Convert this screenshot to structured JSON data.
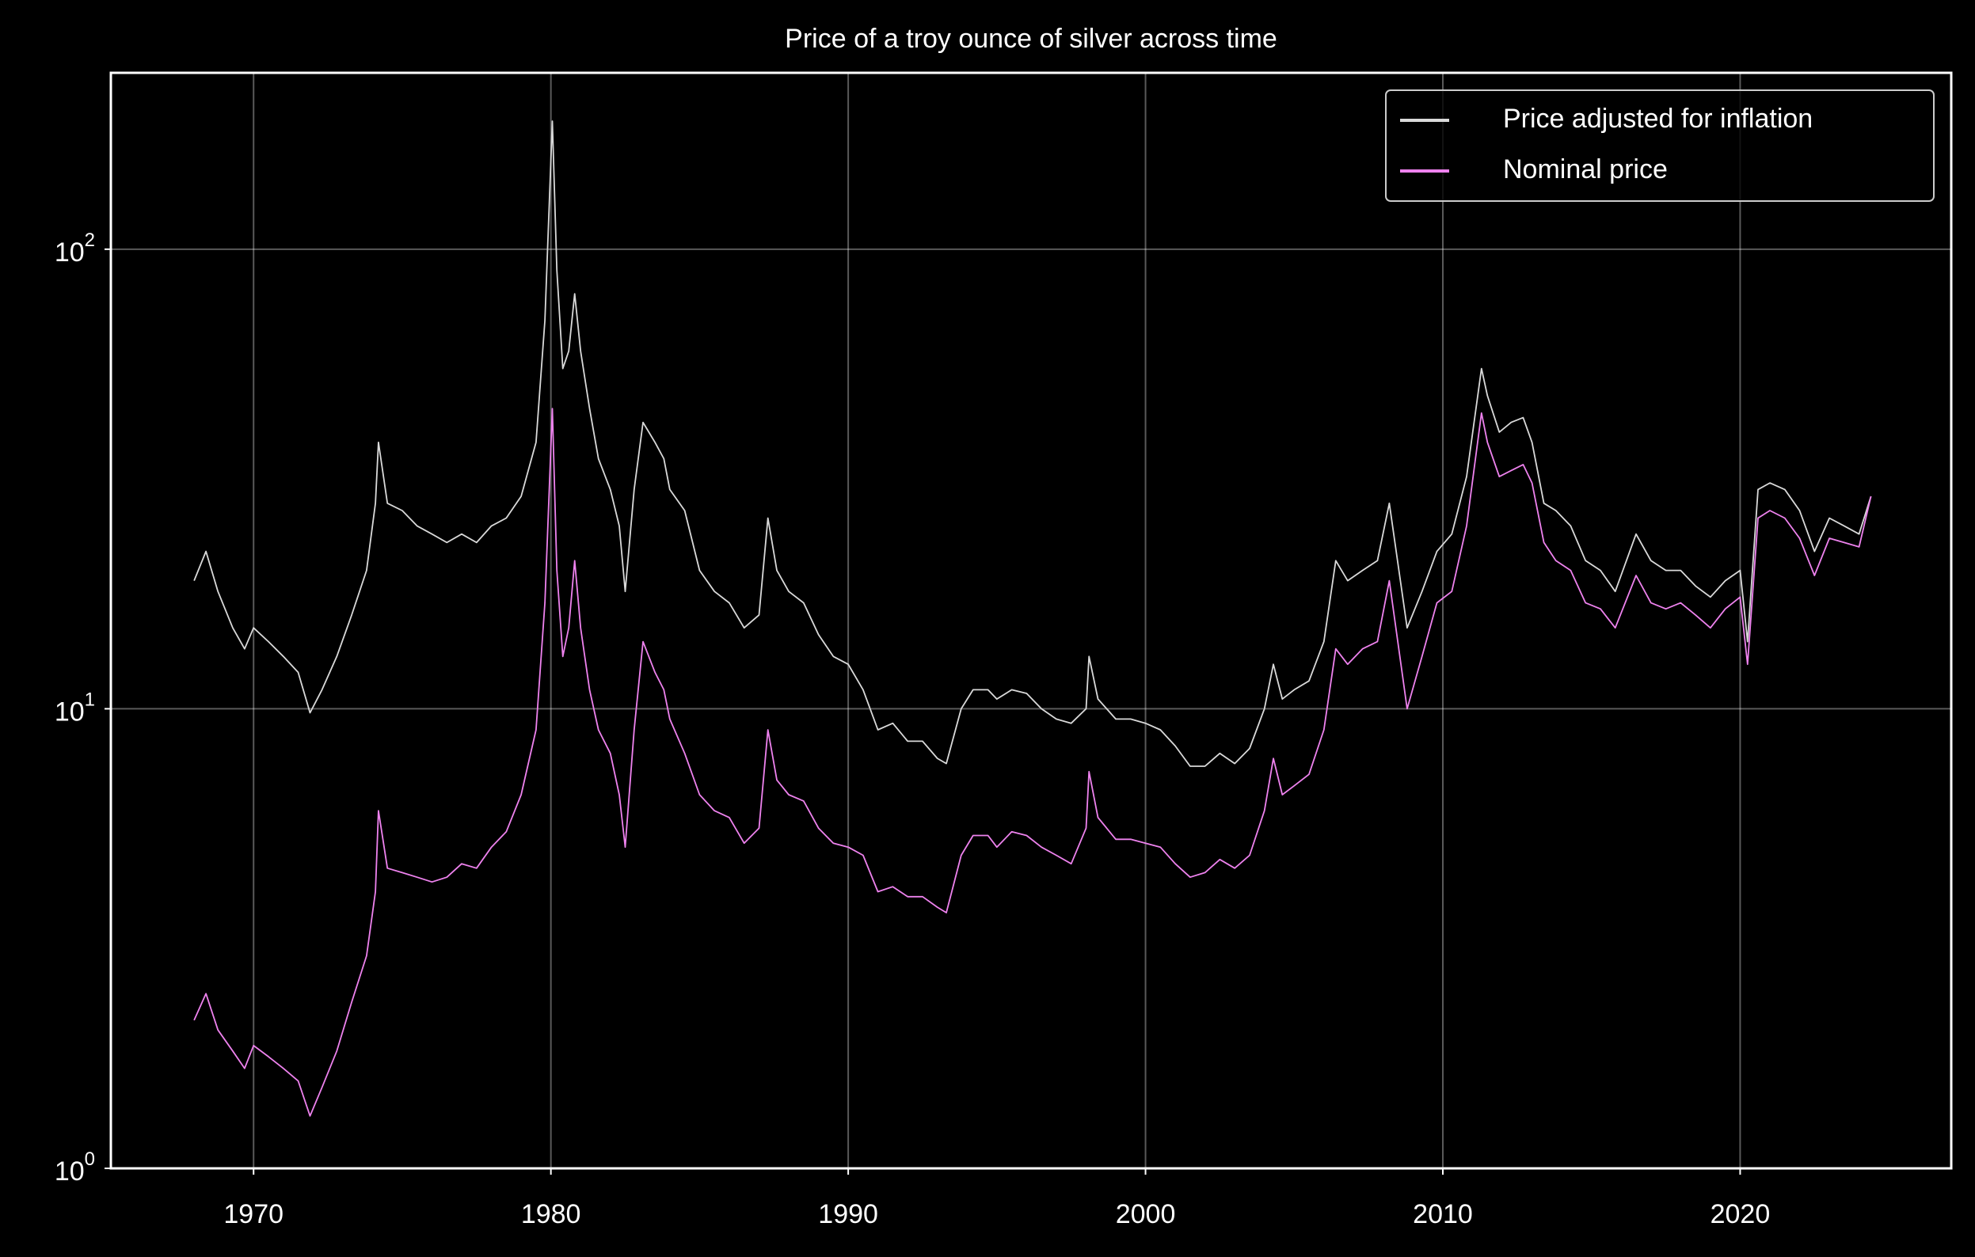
{
  "chart_data": {
    "type": "line",
    "title": "Price of a troy ounce of silver across time",
    "x": [
      1968.0,
      1968.4,
      1968.8,
      1969.3,
      1969.7,
      1970.0,
      1970.5,
      1971.0,
      1971.5,
      1971.9,
      1972.3,
      1972.8,
      1973.3,
      1973.8,
      1974.1,
      1974.2,
      1974.5,
      1975.0,
      1975.5,
      1976.0,
      1976.5,
      1977.0,
      1977.5,
      1978.0,
      1978.5,
      1979.0,
      1979.5,
      1979.8,
      1980.05,
      1980.2,
      1980.4,
      1980.6,
      1980.8,
      1981.0,
      1981.3,
      1981.6,
      1982.0,
      1982.3,
      1982.5,
      1982.8,
      1983.1,
      1983.5,
      1983.8,
      1984.0,
      1984.5,
      1985.0,
      1985.5,
      1986.0,
      1986.5,
      1987.0,
      1987.3,
      1987.6,
      1988.0,
      1988.5,
      1989.0,
      1989.5,
      1990.0,
      1990.5,
      1991.0,
      1991.5,
      1992.0,
      1992.5,
      1993.0,
      1993.3,
      1993.8,
      1994.2,
      1994.7,
      1995.0,
      1995.5,
      1996.0,
      1996.5,
      1997.0,
      1997.5,
      1998.0,
      1998.1,
      1998.4,
      1999.0,
      1999.5,
      2000.0,
      2000.5,
      2001.0,
      2001.5,
      2002.0,
      2002.5,
      2003.0,
      2003.5,
      2004.0,
      2004.3,
      2004.6,
      2005.0,
      2005.5,
      2006.0,
      2006.4,
      2006.8,
      2007.3,
      2007.8,
      2008.2,
      2008.8,
      2009.3,
      2009.8,
      2010.3,
      2010.8,
      2011.3,
      2011.5,
      2011.9,
      2012.3,
      2012.7,
      2013.0,
      2013.4,
      2013.8,
      2014.3,
      2014.8,
      2015.3,
      2015.8,
      2016.5,
      2017.0,
      2017.5,
      2018.0,
      2018.5,
      2019.0,
      2019.5,
      2020.0,
      2020.25,
      2020.6,
      2021.0,
      2021.5,
      2022.0,
      2022.5,
      2023.0,
      2023.5,
      2024.0,
      2024.4
    ],
    "series": [
      {
        "name": "Price adjusted for inflation",
        "color": "#d9d9d9",
        "values": [
          19,
          22,
          18,
          15,
          13.5,
          15,
          14,
          13,
          12,
          9.8,
          11,
          13,
          16,
          20,
          28,
          38,
          28,
          27,
          25,
          24,
          23,
          24,
          23,
          25,
          26,
          29,
          38,
          70,
          190,
          90,
          55,
          60,
          80,
          60,
          45,
          35,
          30,
          25,
          18,
          30,
          42,
          38,
          35,
          30,
          27,
          20,
          18,
          17,
          15,
          16,
          26,
          20,
          18,
          17,
          14.5,
          13,
          12.5,
          11,
          9,
          9.3,
          8.5,
          8.5,
          7.8,
          7.6,
          10,
          11,
          11,
          10.5,
          11,
          10.8,
          10,
          9.5,
          9.3,
          10,
          13,
          10.5,
          9.5,
          9.5,
          9.3,
          9,
          8.3,
          7.5,
          7.5,
          8,
          7.6,
          8.2,
          10,
          12.5,
          10.5,
          11,
          11.5,
          14,
          21,
          19,
          20,
          21,
          28,
          15,
          18,
          22,
          24,
          32,
          55,
          48,
          40,
          42,
          43,
          38,
          28,
          27,
          25,
          21,
          20,
          18,
          24,
          21,
          20,
          20,
          18.5,
          17.5,
          19,
          20,
          14,
          30,
          31,
          30,
          27,
          22,
          26,
          25,
          24,
          29
        ]
      },
      {
        "name": "Nominal price",
        "color": "#ee82ee",
        "values": [
          2.1,
          2.4,
          2.0,
          1.8,
          1.65,
          1.85,
          1.75,
          1.65,
          1.55,
          1.3,
          1.5,
          1.8,
          2.3,
          2.9,
          4,
          6,
          4.5,
          4.4,
          4.3,
          4.2,
          4.3,
          4.6,
          4.5,
          5,
          5.4,
          6.5,
          9,
          17,
          45,
          20,
          13,
          15,
          21,
          15,
          11,
          9,
          8,
          6.5,
          5,
          9,
          14,
          12,
          11,
          9.5,
          8,
          6.5,
          6,
          5.8,
          5.1,
          5.5,
          9,
          7,
          6.5,
          6.3,
          5.5,
          5.1,
          5,
          4.8,
          4,
          4.1,
          3.9,
          3.9,
          3.7,
          3.6,
          4.8,
          5.3,
          5.3,
          5,
          5.4,
          5.3,
          5,
          4.8,
          4.6,
          5.5,
          7.3,
          5.8,
          5.2,
          5.2,
          5.1,
          5,
          4.6,
          4.3,
          4.4,
          4.7,
          4.5,
          4.8,
          6,
          7.8,
          6.5,
          6.8,
          7.2,
          9,
          13.5,
          12.5,
          13.5,
          14,
          19,
          10,
          13,
          17,
          18,
          25,
          44,
          38,
          32,
          33,
          34,
          31,
          23,
          21,
          20,
          17,
          16.5,
          15,
          19.5,
          17,
          16.5,
          17,
          16,
          15,
          16.5,
          17.5,
          12.5,
          26,
          27,
          26,
          23.5,
          19.5,
          23.5,
          23,
          22.5,
          29
        ]
      }
    ],
    "xlim": [
      1965.2,
      2027.1
    ],
    "xticks": [
      1970,
      1980,
      1990,
      2000,
      2010,
      2020
    ],
    "ylim": [
      1,
      242
    ],
    "log_y": true,
    "yticks": [
      {
        "value": 1,
        "label": "10",
        "exponent": "0"
      },
      {
        "value": 10,
        "label": "10",
        "exponent": "1"
      },
      {
        "value": 100,
        "label": "10",
        "exponent": "2"
      }
    ],
    "grid": true,
    "legend": "upper right"
  }
}
